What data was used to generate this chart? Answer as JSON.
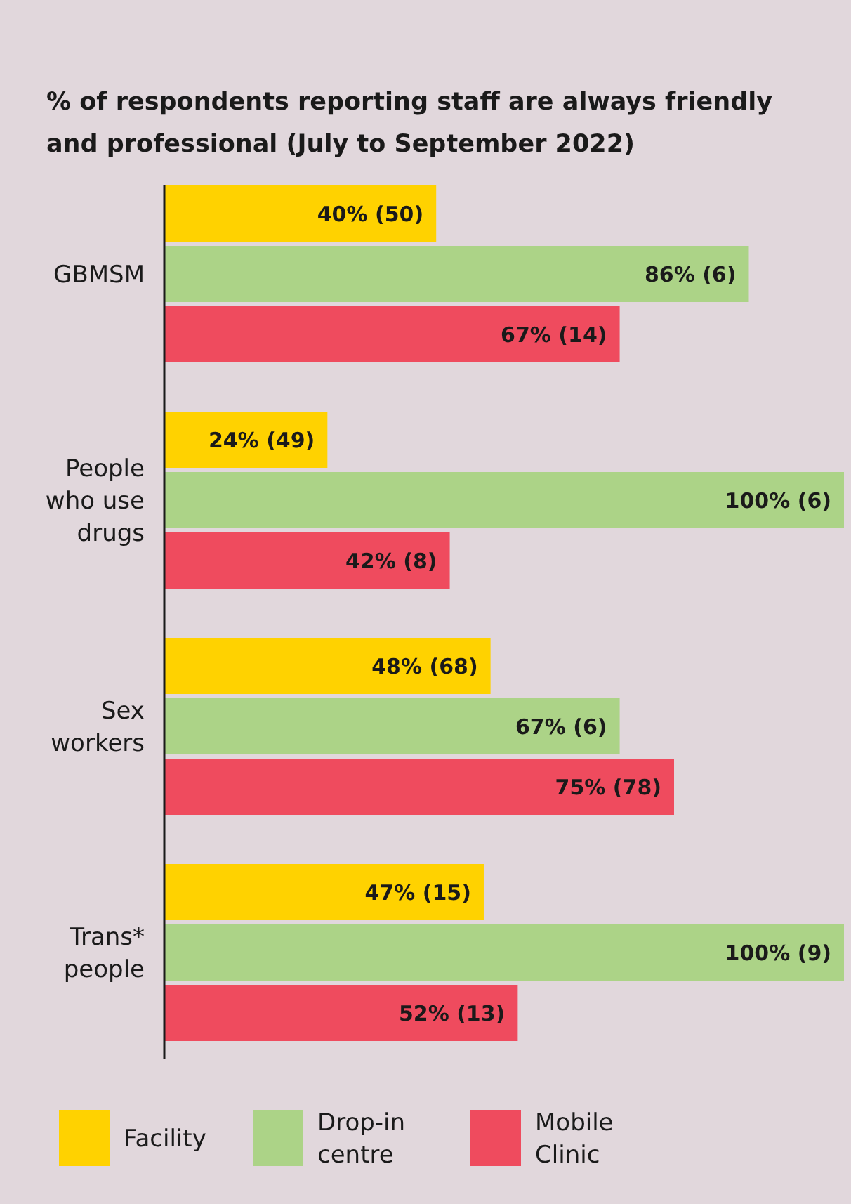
{
  "chart_data": {
    "type": "bar",
    "orientation": "horizontal",
    "title": "% of respondents reporting staff are always friendly and professional (July to September 2022)",
    "categories": [
      "GBMSM",
      "People who use drugs",
      "Sex workers",
      "Trans* people"
    ],
    "xlim": [
      0,
      100
    ],
    "tick_labels": "y",
    "legend": "bottom",
    "series": [
      {
        "name": "Facility",
        "color": "#ffd200",
        "values": [
          40,
          24,
          48,
          47
        ],
        "value_labels": [
          "40% (50)",
          "24% (49)",
          "48% (68)",
          "47% (15)"
        ]
      },
      {
        "name": "Drop-in centre",
        "color": "#acd387",
        "values": [
          86,
          100,
          67,
          100
        ],
        "value_labels": [
          "86% (6)",
          "100% (6)",
          "67% (6)",
          "100% (9)"
        ]
      },
      {
        "name": "Mobile Clinic",
        "color": "#ef4b5e",
        "values": [
          67,
          42,
          75,
          52
        ],
        "value_labels": [
          "67% (14)",
          "42% (8)",
          "75% (78)",
          "52% (13)"
        ]
      }
    ]
  }
}
